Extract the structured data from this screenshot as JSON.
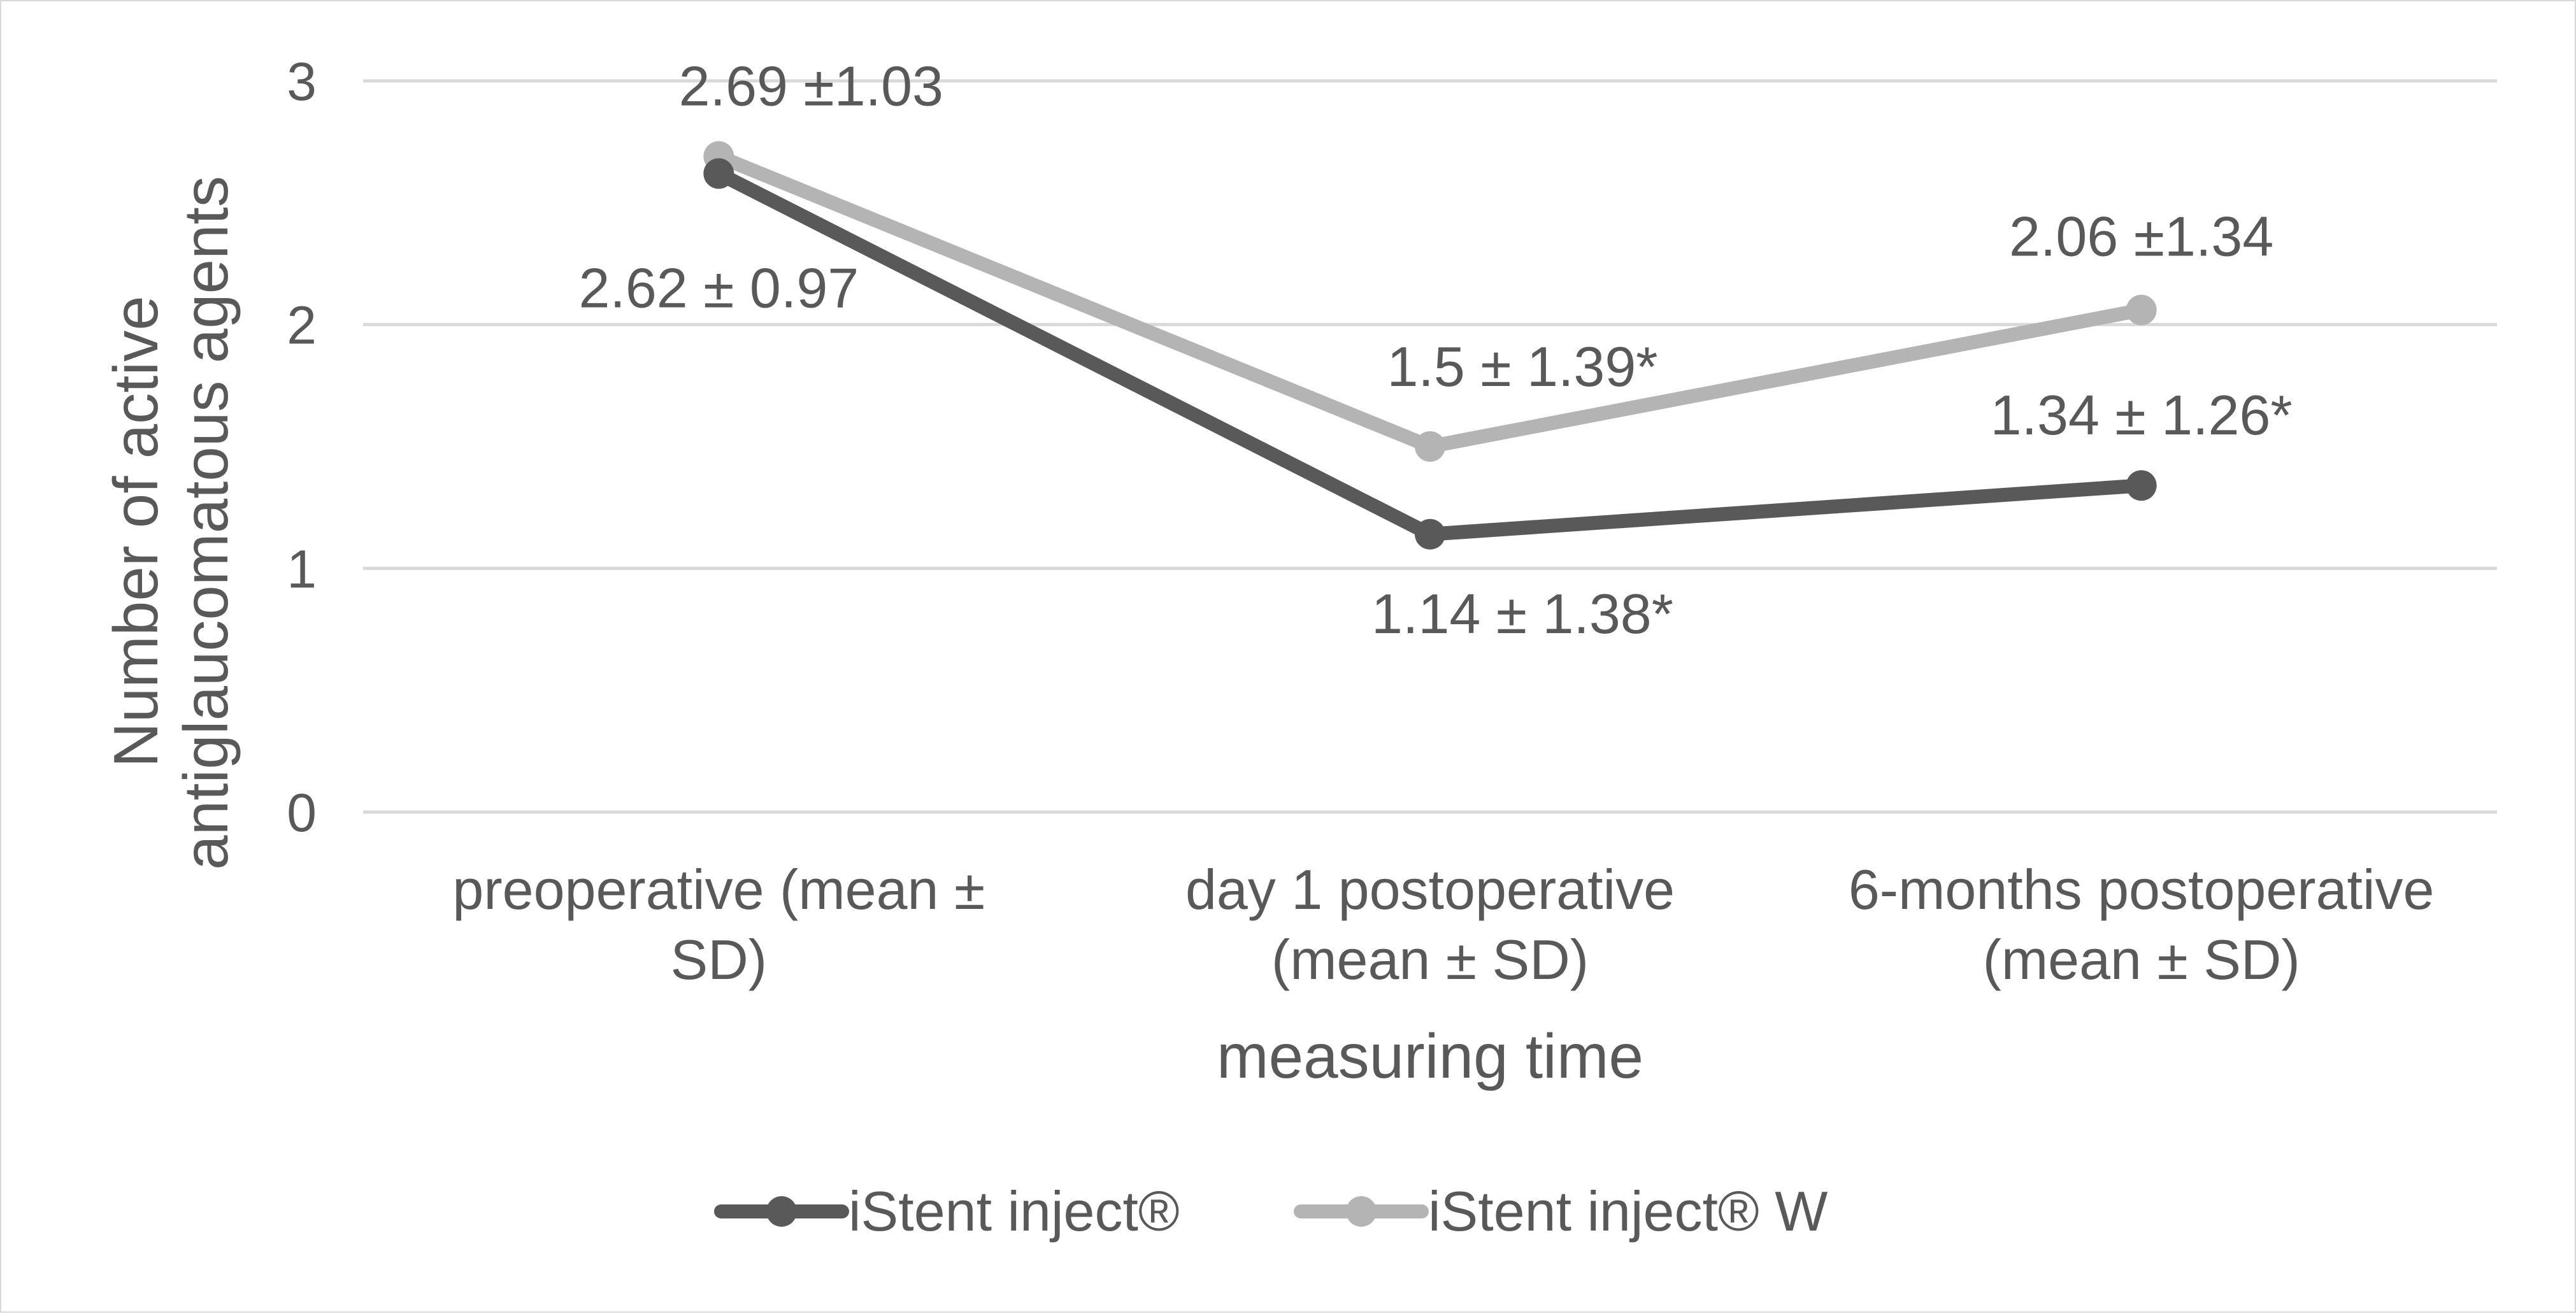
{
  "chart_data": {
    "type": "line",
    "title": "",
    "xlabel": "measuring time",
    "ylabel_lines": [
      "Number of active",
      "antiglaucomatous agents"
    ],
    "ylim": [
      0,
      3
    ],
    "yticks": [
      0,
      1,
      2,
      3
    ],
    "ytick_labels": [
      "0",
      "1",
      "2",
      "3"
    ],
    "grid": true,
    "legend": "bottom",
    "categories": [
      [
        "preoperative (mean ±",
        "SD)"
      ],
      [
        "day 1 postoperative",
        "(mean ± SD)"
      ],
      [
        "6-months postoperative",
        "(mean ± SD)"
      ]
    ],
    "series": [
      {
        "name": "iStent inject®",
        "color": "#595959",
        "values": [
          2.62,
          1.14,
          1.34
        ],
        "labels": [
          "2.62 ± 0.97",
          "1.14 ± 1.38*",
          "1.34 ± 1.26*"
        ]
      },
      {
        "name": "iStent inject® W",
        "color": "#b4b4b4",
        "values": [
          2.69,
          1.5,
          2.06
        ],
        "labels": [
          "2.69 ±1.03",
          "1.5 ± 1.39*",
          "2.06 ±1.34"
        ]
      }
    ]
  }
}
